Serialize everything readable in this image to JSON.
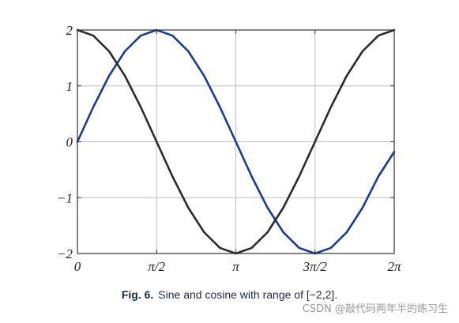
{
  "chart_data": {
    "type": "line",
    "title": "",
    "xlabel": "",
    "ylabel": "",
    "xlim": [
      0,
      6.2832
    ],
    "ylim": [
      -2,
      2
    ],
    "grid": true,
    "x_ticks": [
      {
        "value": 0,
        "label": "0"
      },
      {
        "value": 1.5708,
        "label": "π/2"
      },
      {
        "value": 3.1416,
        "label": "π"
      },
      {
        "value": 4.7124,
        "label": "3π/2"
      },
      {
        "value": 6.2832,
        "label": "2π"
      }
    ],
    "y_ticks": [
      {
        "value": 2,
        "label": "2"
      },
      {
        "value": 1,
        "label": "1"
      },
      {
        "value": 0,
        "label": "0"
      },
      {
        "value": -1,
        "label": "−1"
      },
      {
        "value": -2,
        "label": "−2"
      }
    ],
    "series": [
      {
        "color": "#1a3a9a",
        "x": [
          0,
          0.314,
          0.628,
          0.942,
          1.257,
          1.571,
          1.885,
          2.199,
          2.513,
          2.827,
          3.142,
          3.456,
          3.77,
          4.084,
          4.398,
          4.712,
          5.027,
          5.341,
          5.655,
          5.969,
          6.283
        ],
        "y": [
          0,
          0.62,
          1.18,
          1.62,
          1.9,
          2.0,
          1.9,
          1.62,
          1.18,
          0.62,
          0,
          -0.62,
          -1.18,
          -1.62,
          -1.9,
          -2.0,
          -1.9,
          -1.62,
          -1.18,
          -0.62,
          -0.18
        ]
      },
      {
        "color": "#2b2b2b",
        "x": [
          0,
          0.314,
          0.628,
          0.942,
          1.257,
          1.571,
          1.885,
          2.199,
          2.513,
          2.827,
          3.142,
          3.456,
          3.77,
          4.084,
          4.398,
          4.712,
          5.027,
          5.341,
          5.655,
          5.969,
          6.283
        ],
        "y": [
          2.0,
          1.9,
          1.62,
          1.18,
          0.62,
          0,
          -0.62,
          -1.18,
          -1.62,
          -1.9,
          -2.0,
          -1.9,
          -1.62,
          -1.18,
          -0.62,
          0,
          0.62,
          1.18,
          1.62,
          1.9,
          2.0
        ]
      }
    ]
  },
  "caption": {
    "label": "Fig. 6.",
    "text": "Sine and cosine with range of [−2,2]."
  },
  "watermark": "CSDN @敲代码两年半的练习生"
}
